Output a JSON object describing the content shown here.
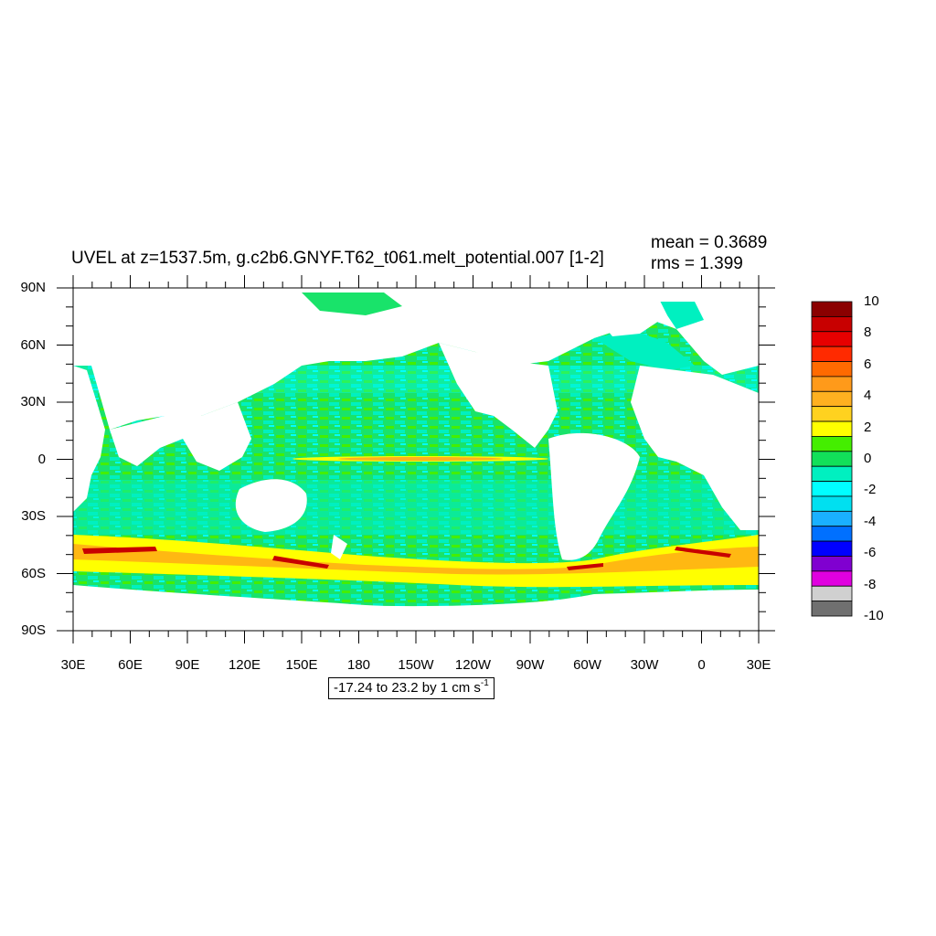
{
  "title": "UVEL at z=1537.5m, g.c2b6.GNYF.T62_t061.melt_potential.007 [1-2]",
  "stats": {
    "mean": "mean = 0.3689",
    "rms": "rms = 1.399"
  },
  "axes": {
    "y_ticks": [
      "90N",
      "60N",
      "30N",
      "0",
      "30S",
      "60S",
      "90S"
    ],
    "x_ticks": [
      "30E",
      "60E",
      "90E",
      "120E",
      "150E",
      "180",
      "150W",
      "120W",
      "90W",
      "60W",
      "30W",
      "0",
      "30E"
    ]
  },
  "contour_info": {
    "text": "-17.24 to 23.2 by 1 cm s",
    "unit_exp": "-1"
  },
  "colorbar": {
    "labels": [
      "10",
      "8",
      "6",
      "4",
      "2",
      "0",
      "-2",
      "-4",
      "-6",
      "-8",
      "-10"
    ],
    "colors": [
      "#8b0000",
      "#c80000",
      "#e60000",
      "#ff2a00",
      "#ff6a00",
      "#ff9a1a",
      "#ffb020",
      "#ffd21f",
      "#ffff00",
      "#44ee00",
      "#12e05a",
      "#00f0c0",
      "#00ffff",
      "#00e0f0",
      "#1ab0ff",
      "#0070ff",
      "#0000ff",
      "#8000d0",
      "#e000e0",
      "#d0d0d0",
      "#707070"
    ]
  },
  "chart_data": {
    "type": "heatmap",
    "variable": "UVEL",
    "depth": "z=1537.5m",
    "case": "g.c2b6.GNYF.T62_t061.melt_potential.007 [1-2]",
    "mean": 0.3689,
    "rms": 1.399,
    "units": "cm s-1",
    "contour_min": -17.24,
    "contour_max": 23.2,
    "contour_interval": 1,
    "colorbar_range": [
      -10,
      10
    ],
    "lon_range": [
      "30E",
      "30E"
    ],
    "lat_range": [
      "90S",
      "90N"
    ]
  }
}
